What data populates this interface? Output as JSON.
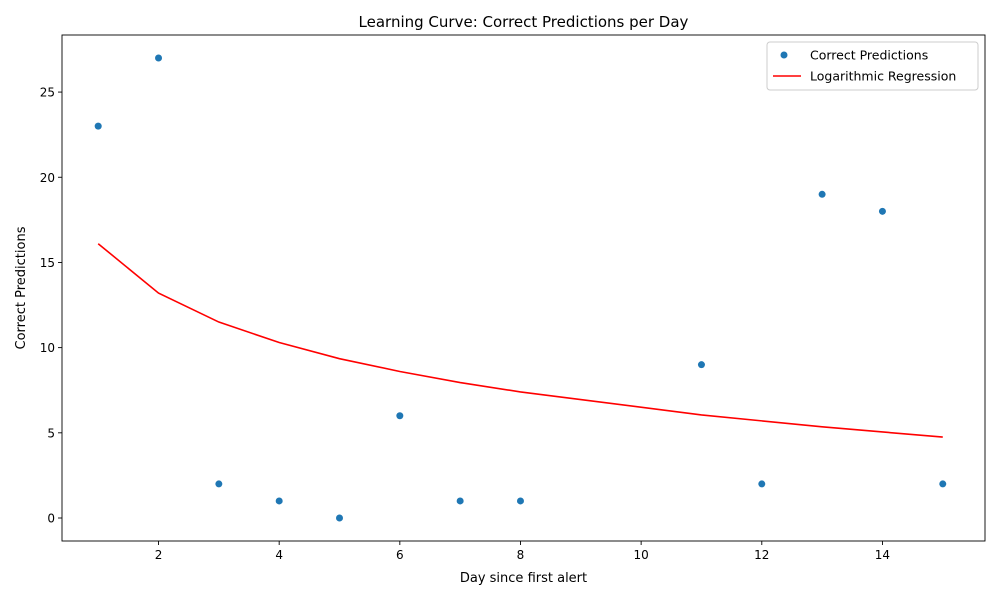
{
  "chart_data": {
    "type": "scatter",
    "title": "Learning Curve: Correct Predictions per Day",
    "xlabel": "Day since first alert",
    "ylabel": "Correct Predictions",
    "xlim": [
      0.4,
      15.7
    ],
    "ylim": [
      -1.35,
      28.35
    ],
    "xticks": [
      2,
      4,
      6,
      8,
      10,
      12,
      14
    ],
    "yticks": [
      0,
      5,
      10,
      15,
      20,
      25
    ],
    "grid": false,
    "legend_position": "top-right",
    "series": [
      {
        "name": "Correct Predictions",
        "kind": "scatter",
        "color": "#1f77b4",
        "points": [
          {
            "x": 1,
            "y": 23
          },
          {
            "x": 2,
            "y": 27
          },
          {
            "x": 3,
            "y": 2
          },
          {
            "x": 4,
            "y": 1
          },
          {
            "x": 5,
            "y": 0
          },
          {
            "x": 6,
            "y": 6
          },
          {
            "x": 7,
            "y": 1
          },
          {
            "x": 8,
            "y": 1
          },
          {
            "x": 11,
            "y": 9
          },
          {
            "x": 12,
            "y": 2
          },
          {
            "x": 13,
            "y": 19
          },
          {
            "x": 14,
            "y": 18
          },
          {
            "x": 15,
            "y": 2
          }
        ]
      },
      {
        "name": "Logarithmic Regression",
        "kind": "line",
        "color": "#ff0000",
        "points": [
          {
            "x": 1,
            "y": 16.1
          },
          {
            "x": 2,
            "y": 13.2
          },
          {
            "x": 3,
            "y": 11.5
          },
          {
            "x": 4,
            "y": 10.3
          },
          {
            "x": 5,
            "y": 9.35
          },
          {
            "x": 6,
            "y": 8.6
          },
          {
            "x": 7,
            "y": 7.95
          },
          {
            "x": 8,
            "y": 7.4
          },
          {
            "x": 11,
            "y": 6.05
          },
          {
            "x": 12,
            "y": 5.7
          },
          {
            "x": 13,
            "y": 5.35
          },
          {
            "x": 14,
            "y": 5.05
          },
          {
            "x": 15,
            "y": 4.75
          }
        ]
      }
    ]
  }
}
